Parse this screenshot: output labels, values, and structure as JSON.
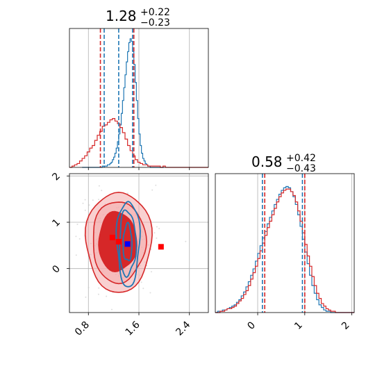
{
  "colors": {
    "blue": "#1f77b4",
    "red": "#d62728",
    "red_light": "#f4a9a9",
    "scatter_red": "#ff0000",
    "scatter_blue": "#0000ff",
    "grid": "#b0b0b0"
  },
  "chart_data": [
    {
      "id": "hist_x",
      "type": "histogram",
      "title": {
        "value": "1.28",
        "sup": "+0.22",
        "sub": "−0.23"
      },
      "xlim": [
        0.5,
        2.7
      ],
      "ylim": [
        0,
        1.08
      ],
      "grid_x": [
        0.8,
        1.6,
        2.4
      ],
      "quantiles_blue": [
        1.05,
        1.28,
        1.5
      ],
      "quantiles_red": [
        0.99,
        1.52
      ],
      "series": [
        {
          "color": "blue",
          "bin_start": 0.7,
          "bin_width": 0.02,
          "values": [
            0.0,
            0.0,
            0.0,
            0.0,
            0.0,
            0.0,
            0.0,
            0.0,
            0.0,
            0.0,
            0.0,
            0.0,
            0.0,
            0.0,
            0.0,
            0.0,
            0.01,
            0.01,
            0.01,
            0.01,
            0.02,
            0.02,
            0.03,
            0.04,
            0.06,
            0.08,
            0.11,
            0.15,
            0.2,
            0.26,
            0.33,
            0.42,
            0.52,
            0.62,
            0.72,
            0.82,
            0.9,
            0.97,
            1.0,
            0.98,
            0.9,
            0.8,
            0.66,
            0.52,
            0.38,
            0.26,
            0.17,
            0.11,
            0.07,
            0.05,
            0.03,
            0.02,
            0.01,
            0.01,
            0.0,
            0.0,
            0.0,
            0.0,
            0.0,
            0.0,
            0.0,
            0.0,
            0.0,
            0.0,
            0.0
          ]
        },
        {
          "color": "red",
          "bin_start": 0.5,
          "bin_width": 0.04,
          "values": [
            0.0,
            0.01,
            0.02,
            0.03,
            0.05,
            0.07,
            0.09,
            0.12,
            0.15,
            0.17,
            0.21,
            0.25,
            0.28,
            0.32,
            0.33,
            0.35,
            0.37,
            0.38,
            0.36,
            0.34,
            0.31,
            0.27,
            0.22,
            0.17,
            0.13,
            0.09,
            0.06,
            0.04,
            0.03,
            0.02,
            0.02,
            0.01,
            0.01,
            0.01,
            0.01,
            0.01,
            0.0,
            0.01,
            0.0,
            0.0,
            0.0,
            0.0,
            0.0,
            0.0,
            0.0,
            0.0,
            0.0,
            0.0,
            0.0,
            0.0,
            0.0,
            0.0,
            0.0,
            0.0,
            0.0
          ]
        }
      ]
    },
    {
      "id": "hist_y",
      "type": "histogram",
      "title": {
        "value": "0.58",
        "sup": "+0.42",
        "sub": "−0.43"
      },
      "xlim": [
        -0.9,
        2.05
      ],
      "ylim": [
        0,
        1.08
      ],
      "x_ticks": [
        "0",
        "1",
        "2"
      ],
      "x_tick_values": [
        0,
        1,
        2
      ],
      "grid_x": [
        0,
        1,
        2
      ],
      "quantiles_blue": [
        0.1,
        0.95
      ],
      "quantiles_red": [
        0.15,
        1.0
      ],
      "series": [
        {
          "color": "blue",
          "bin_start": -0.9,
          "bin_width": 0.05,
          "values": [
            0.0,
            0.01,
            0.01,
            0.02,
            0.02,
            0.03,
            0.04,
            0.05,
            0.06,
            0.08,
            0.1,
            0.13,
            0.16,
            0.2,
            0.24,
            0.29,
            0.34,
            0.4,
            0.46,
            0.52,
            0.58,
            0.63,
            0.69,
            0.74,
            0.79,
            0.84,
            0.88,
            0.92,
            0.95,
            0.97,
            0.98,
            0.97,
            0.94,
            0.9,
            0.84,
            0.76,
            0.67,
            0.57,
            0.47,
            0.38,
            0.29,
            0.21,
            0.15,
            0.1,
            0.06,
            0.04,
            0.02,
            0.01,
            0.01,
            0.0,
            0.0,
            0.0,
            0.0,
            0.0,
            0.0,
            0.0,
            0.0,
            0.0,
            0.0
          ]
        },
        {
          "color": "red",
          "bin_start": -0.9,
          "bin_width": 0.05,
          "values": [
            0.0,
            0.0,
            0.01,
            0.01,
            0.02,
            0.03,
            0.03,
            0.04,
            0.05,
            0.07,
            0.09,
            0.11,
            0.14,
            0.17,
            0.21,
            0.26,
            0.31,
            0.36,
            0.42,
            0.48,
            0.54,
            0.6,
            0.66,
            0.71,
            0.76,
            0.81,
            0.86,
            0.9,
            0.93,
            0.95,
            0.96,
            0.96,
            0.94,
            0.91,
            0.86,
            0.79,
            0.71,
            0.62,
            0.53,
            0.44,
            0.36,
            0.28,
            0.21,
            0.15,
            0.11,
            0.07,
            0.05,
            0.03,
            0.02,
            0.01,
            0.01,
            0.0,
            0.0,
            0.0,
            0.0,
            0.0,
            0.0,
            0.0,
            0.0
          ]
        }
      ]
    },
    {
      "id": "corner_2d",
      "type": "contour",
      "xlim": [
        0.5,
        2.7
      ],
      "ylim": [
        -0.95,
        2.05
      ],
      "x_ticks": [
        "0.8",
        "1.6",
        "2.4"
      ],
      "x_tick_values": [
        0.8,
        1.6,
        2.4
      ],
      "y_ticks": [
        "0",
        "1",
        "2"
      ],
      "y_tick_values": [
        0,
        1,
        2
      ],
      "red_levels": [
        {
          "center": [
            1.28,
            0.58
          ],
          "rx": 0.52,
          "ry": 1.08,
          "fill": "red_light"
        },
        {
          "center": [
            1.28,
            0.58
          ],
          "rx": 0.42,
          "ry": 0.88,
          "fill": "red_light"
        },
        {
          "center": [
            1.26,
            0.58
          ],
          "rx": 0.3,
          "ry": 0.64,
          "fill": "red"
        }
      ],
      "blue_levels": [
        {
          "center": [
            1.43,
            0.55
          ],
          "rx": 0.18,
          "ry": 0.92
        },
        {
          "center": [
            1.42,
            0.55
          ],
          "rx": 0.13,
          "ry": 0.7
        },
        {
          "center": [
            1.42,
            0.55
          ],
          "rx": 0.07,
          "ry": 0.4
        }
      ],
      "markers": [
        {
          "x": 1.18,
          "y": 0.67,
          "color": "scatter_red"
        },
        {
          "x": 1.28,
          "y": 0.58,
          "color": "scatter_red"
        },
        {
          "x": 1.42,
          "y": 0.53,
          "color": "scatter_blue"
        },
        {
          "x": 1.95,
          "y": 0.47,
          "color": "scatter_red"
        }
      ]
    }
  ]
}
